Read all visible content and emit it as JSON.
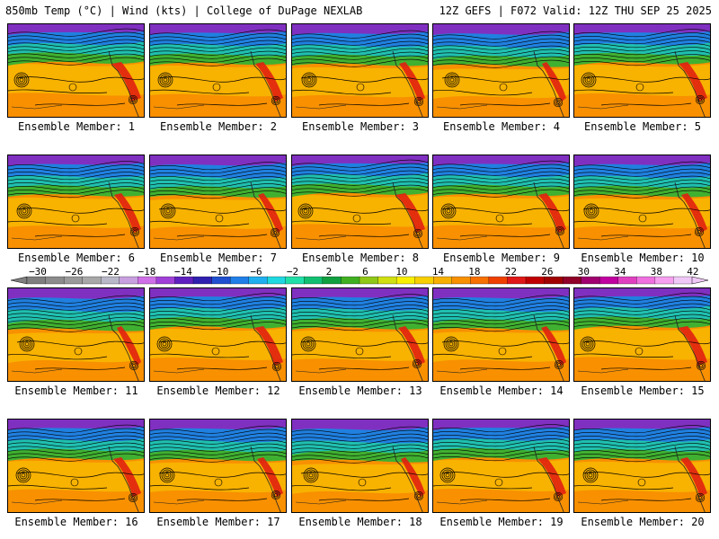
{
  "header": {
    "left_title": "850mb Temp (°C) | Wind (kts) | College of DuPage NEXLAB",
    "right_title": "12Z GEFS | F072 Valid: 12Z THU SEP 25 2025"
  },
  "members": [
    "Ensemble Member: 1",
    "Ensemble Member: 2",
    "Ensemble Member: 3",
    "Ensemble Member: 4",
    "Ensemble Member: 5",
    "Ensemble Member: 6",
    "Ensemble Member: 7",
    "Ensemble Member: 8",
    "Ensemble Member: 9",
    "Ensemble Member: 10",
    "Ensemble Member: 11",
    "Ensemble Member: 12",
    "Ensemble Member: 13",
    "Ensemble Member: 14",
    "Ensemble Member: 15",
    "Ensemble Member: 16",
    "Ensemble Member: 17",
    "Ensemble Member: 18",
    "Ensemble Member: 19",
    "Ensemble Member: 20"
  ],
  "colorbar": {
    "labels": [
      "−30",
      "−26",
      "−22",
      "−18",
      "−14",
      "−10",
      "−6",
      "−2",
      "2",
      "6",
      "10",
      "14",
      "18",
      "22",
      "26",
      "30",
      "34",
      "38",
      "42"
    ],
    "colors": [
      "#7f7f7f",
      "#8c8c8c",
      "#9a9a9a",
      "#a8a8a8",
      "#b8b8c8",
      "#c8a0e0",
      "#d070e8",
      "#a040d8",
      "#6020c0",
      "#3020b0",
      "#2050d0",
      "#2080e8",
      "#20b0f0",
      "#20d8e0",
      "#20e0a8",
      "#10c070",
      "#10a040",
      "#40b020",
      "#90c818",
      "#d0e010",
      "#f8f000",
      "#f8d000",
      "#f8b000",
      "#f89000",
      "#f87000",
      "#f04000",
      "#e01818",
      "#c00000",
      "#a00000",
      "#900028",
      "#a00070",
      "#c000a0",
      "#e040c0",
      "#f070e0",
      "#f8a0f0",
      "#f0c8f8"
    ]
  },
  "map_colors": {
    "arctic": "#8030c0",
    "cold": "#2080e0",
    "cool": "#20c0b0",
    "mild": "#40b030",
    "warm": "#f8b800",
    "hot": "#f89000",
    "very_hot": "#e02010"
  }
}
